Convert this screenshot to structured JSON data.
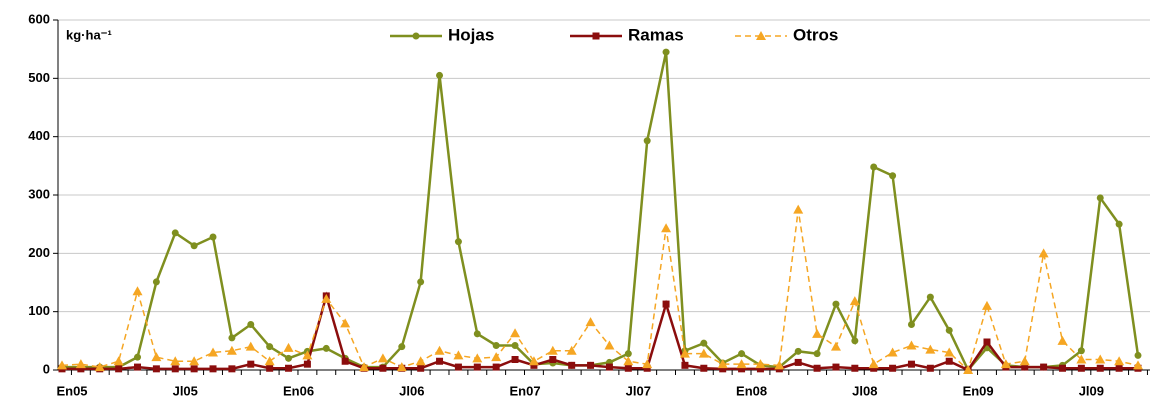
{
  "chart_data": {
    "type": "line",
    "y_label": "kg·ha⁻¹",
    "categories": [
      "En05",
      null,
      null,
      null,
      null,
      null,
      "Jl05",
      null,
      null,
      null,
      null,
      null,
      "En06",
      null,
      null,
      null,
      null,
      null,
      "Jl06",
      null,
      null,
      null,
      null,
      null,
      "En07",
      null,
      null,
      null,
      null,
      null,
      "Jl07",
      null,
      null,
      null,
      null,
      null,
      "En08",
      null,
      null,
      null,
      null,
      null,
      "Jl08",
      null,
      null,
      null,
      null,
      null,
      "En09",
      null,
      null,
      null,
      null,
      null,
      "Jl09",
      null,
      null,
      null
    ],
    "series": [
      {
        "name": "Hojas",
        "color": "#7f8f1f",
        "marker": "circle",
        "dash": false,
        "values": [
          5,
          5,
          5,
          5,
          22,
          151,
          235,
          213,
          228,
          55,
          78,
          40,
          20,
          32,
          37,
          20,
          5,
          5,
          40,
          151,
          505,
          220,
          62,
          42,
          42,
          10,
          12,
          8,
          8,
          13,
          28,
          393,
          545,
          33,
          46,
          12,
          28,
          8,
          5,
          32,
          28,
          113,
          50,
          348,
          333,
          78,
          125,
          68,
          0,
          38,
          8,
          5,
          5,
          8,
          33,
          295,
          250,
          25
        ]
      },
      {
        "name": "Ramas",
        "color": "#8b0d0d",
        "marker": "square",
        "dash": false,
        "values": [
          2,
          2,
          2,
          2,
          5,
          2,
          2,
          2,
          2,
          2,
          10,
          3,
          3,
          10,
          127,
          15,
          3,
          3,
          3,
          3,
          15,
          5,
          5,
          5,
          18,
          8,
          18,
          8,
          8,
          5,
          3,
          3,
          113,
          8,
          3,
          2,
          2,
          2,
          2,
          13,
          3,
          5,
          3,
          3,
          3,
          10,
          3,
          15,
          0,
          48,
          5,
          5,
          5,
          3,
          3,
          3,
          3,
          3
        ]
      },
      {
        "name": "Otros",
        "color": "#f5a623",
        "marker": "triangle",
        "dash": true,
        "values": [
          8,
          10,
          5,
          15,
          135,
          22,
          15,
          15,
          30,
          33,
          40,
          15,
          38,
          25,
          122,
          80,
          5,
          20,
          5,
          15,
          33,
          25,
          20,
          22,
          63,
          15,
          33,
          33,
          82,
          42,
          15,
          10,
          243,
          28,
          28,
          10,
          10,
          10,
          8,
          275,
          62,
          40,
          118,
          10,
          30,
          42,
          35,
          30,
          0,
          110,
          10,
          15,
          200,
          50,
          18,
          18,
          15,
          8
        ]
      }
    ],
    "ylim": [
      0,
      600
    ],
    "yticks": [
      0,
      100,
      200,
      300,
      400,
      500,
      600
    ],
    "grid": true
  }
}
